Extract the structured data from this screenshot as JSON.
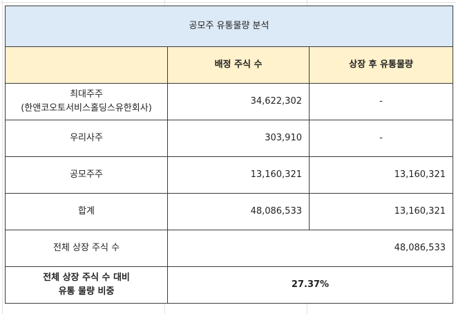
{
  "title": "공모주 유통물량 분석",
  "header": [
    "배정 주식 수",
    "상장 후 유통물량"
  ],
  "rows": [
    {
      "label": [
        "최대주주",
        "(한앤코오토서비스홀딩스유한회사)"
      ],
      "cells": [
        "34,622,302",
        "-"
      ]
    },
    {
      "label": [
        "우리사주"
      ],
      "cells": [
        "303,910",
        "-"
      ]
    },
    {
      "label": [
        "공모주주"
      ],
      "cells": [
        "13,160,321",
        "13,160,321"
      ]
    },
    {
      "label": [
        "합계"
      ],
      "cells": [
        "48,086,533",
        "13,160,321"
      ]
    },
    {
      "label": [
        "전체 상장 주식 수"
      ],
      "cells": [
        "48,086,533"
      ]
    },
    {
      "label": [
        "전체 상장 주식 수 대비",
        "유통 물량 비중"
      ],
      "cells": [
        "27.37%"
      ],
      "bold": true
    }
  ]
}
